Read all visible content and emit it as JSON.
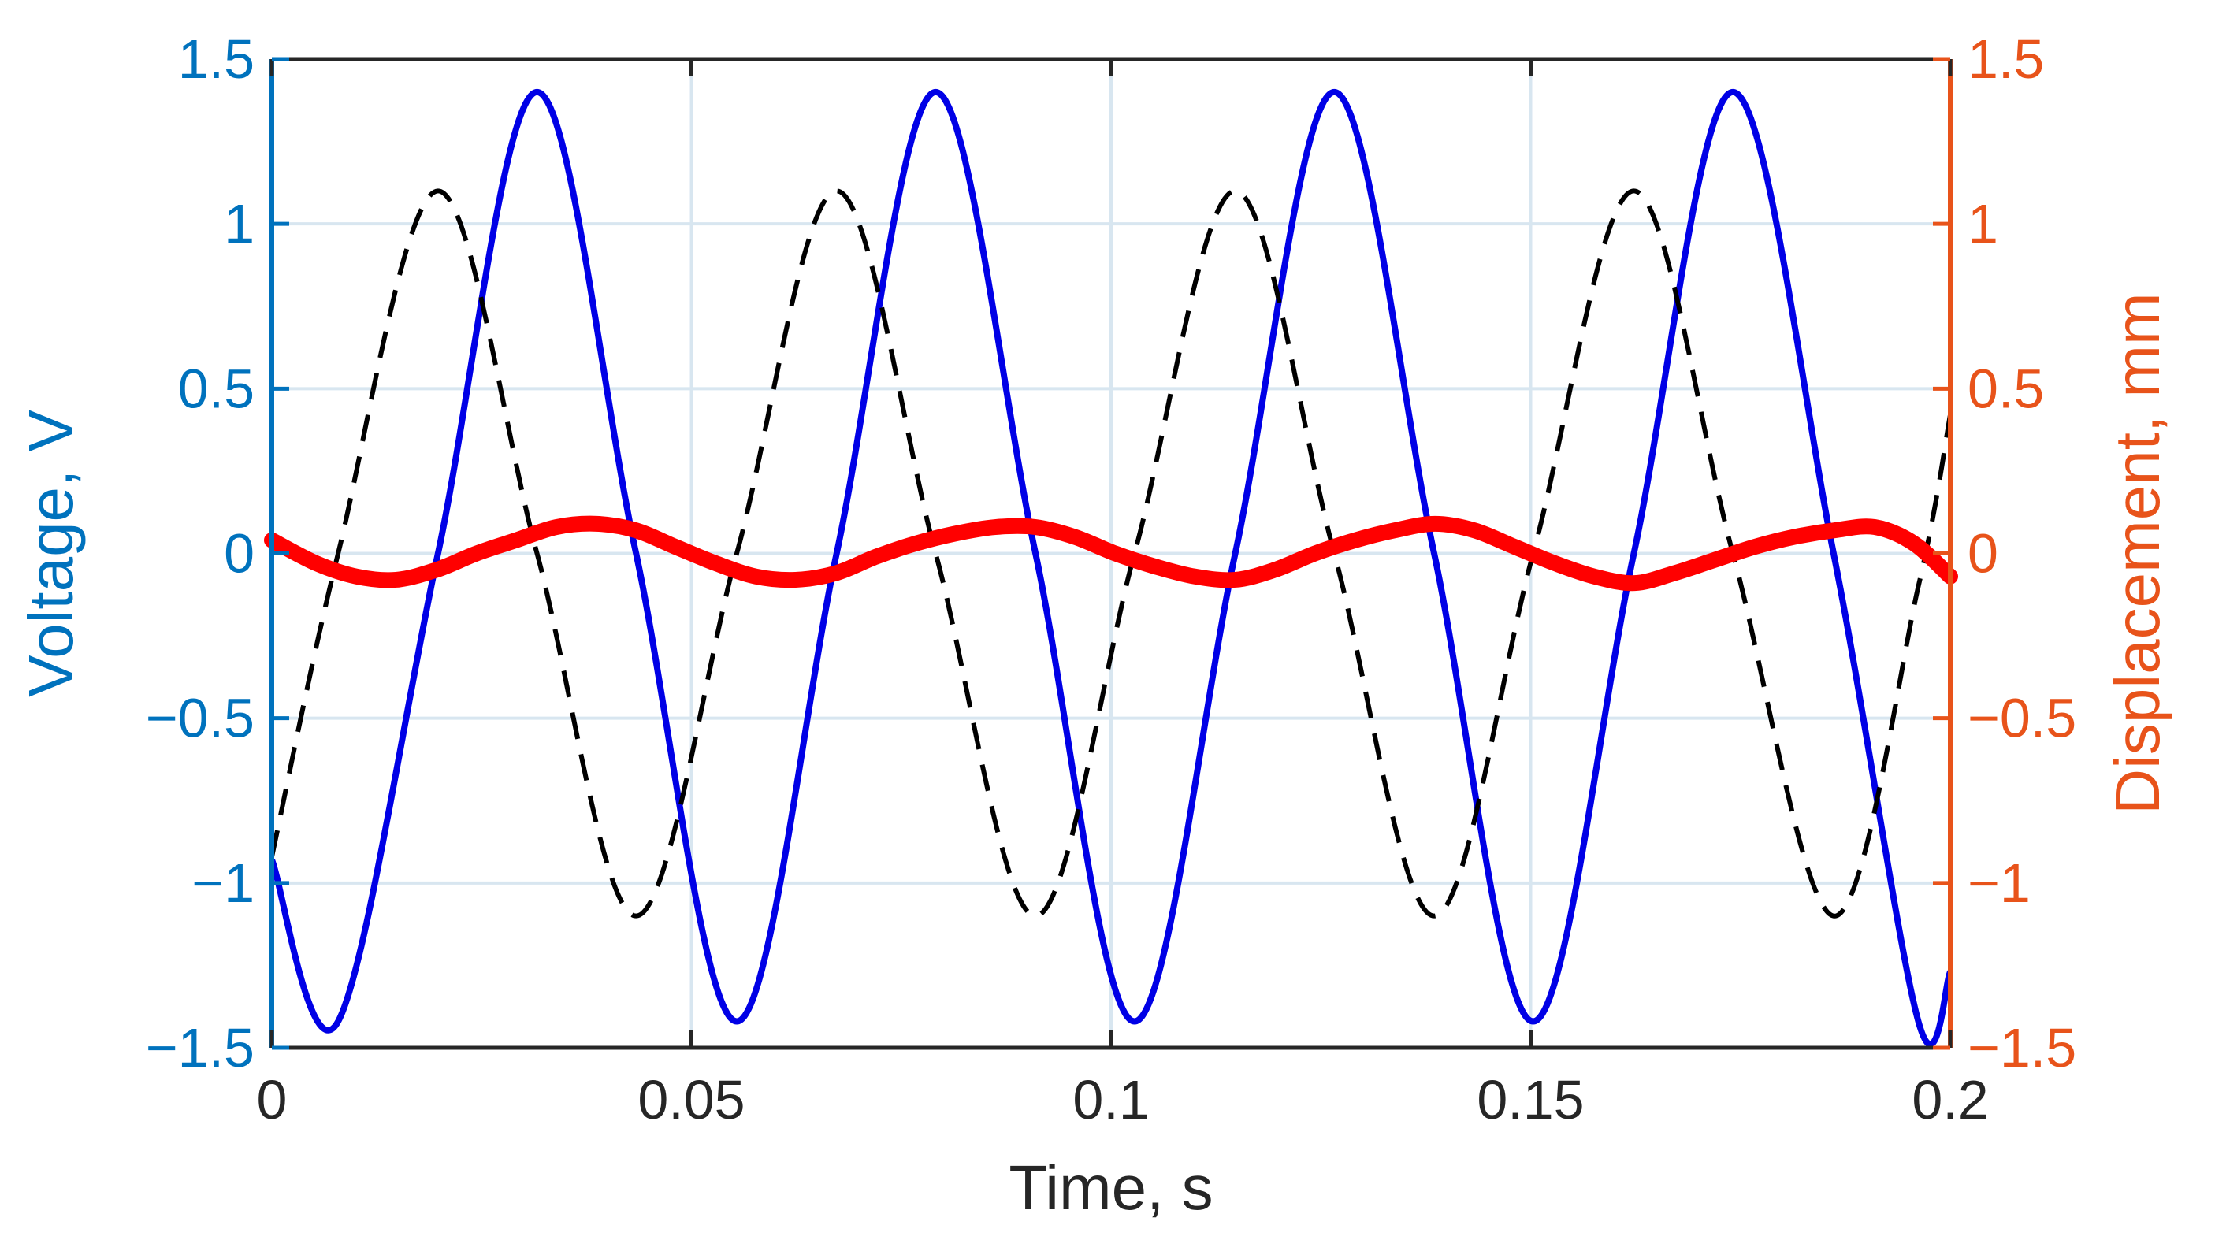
{
  "chart_data": {
    "type": "line",
    "xlabel": "Time,  s",
    "ylabel_left": "Voltage, V",
    "ylabel_right": "Displacement,  mm",
    "xlim": [
      0,
      0.2
    ],
    "ylim_left": [
      -1.5,
      1.5
    ],
    "ylim_right": [
      -1.5,
      1.5
    ],
    "xticks": [
      "0",
      "0.05",
      "0.1",
      "0.15",
      "0.2"
    ],
    "yticks_left": [
      "1.5",
      "1",
      "0.5",
      "0",
      "−0.5",
      "−1",
      "−1.5"
    ],
    "yticks_right": [
      "1.5",
      "1",
      "0.5",
      "0",
      "−0.5",
      "−1",
      "−1.5"
    ],
    "grid": true,
    "series": [
      {
        "axis": "left",
        "style": "solid",
        "color": "#0000e6",
        "x": [
          0,
          0.0079,
          0.0198,
          0.0316,
          0.0434,
          0.0554,
          0.0673,
          0.0791,
          0.091,
          0.1028,
          0.1148,
          0.1266,
          0.1385,
          0.1503,
          0.1623,
          0.1741,
          0.1861,
          0.1962,
          0.2
        ],
        "y": [
          -0.93,
          -1.42,
          0.0,
          1.4,
          0.0,
          -1.42,
          0.0,
          1.4,
          0.0,
          -1.42,
          0.0,
          1.4,
          0.0,
          -1.42,
          0.0,
          1.4,
          0.0,
          -1.42,
          -1.27
        ]
      },
      {
        "axis": "left",
        "style": "dashed",
        "color": "#000000",
        "x": [
          0,
          0.0079,
          0.0198,
          0.0316,
          0.0434,
          0.0554,
          0.0673,
          0.0791,
          0.091,
          0.1028,
          0.1148,
          0.1266,
          0.1385,
          0.1503,
          0.1623,
          0.1741,
          0.1861,
          0.1962,
          0.2
        ],
        "y": [
          -0.92,
          0.0,
          1.1,
          0.0,
          -1.1,
          0.0,
          1.1,
          0.0,
          -1.1,
          0.0,
          1.1,
          0.0,
          -1.1,
          0.0,
          1.1,
          0.0,
          -1.1,
          -0.1,
          0.42
        ]
      },
      {
        "axis": "right",
        "style": "noisy",
        "color": "#ff0000",
        "x": [
          0,
          0.0053,
          0.0101,
          0.0148,
          0.0196,
          0.0244,
          0.0291,
          0.0339,
          0.0387,
          0.0434,
          0.0481,
          0.0529,
          0.0577,
          0.0624,
          0.0672,
          0.072,
          0.0767,
          0.0814,
          0.0862,
          0.091,
          0.0957,
          0.1005,
          0.1053,
          0.11,
          0.1148,
          0.1195,
          0.1243,
          0.1291,
          0.1338,
          0.1386,
          0.1433,
          0.1481,
          0.1529,
          0.1576,
          0.1624,
          0.1671,
          0.1719,
          0.1767,
          0.1814,
          0.1862,
          0.191,
          0.1957,
          0.2
        ],
        "y": [
          0.04,
          -0.03,
          -0.07,
          -0.08,
          -0.05,
          0.0,
          0.04,
          0.08,
          0.09,
          0.07,
          0.02,
          -0.03,
          -0.07,
          -0.08,
          -0.06,
          -0.01,
          0.03,
          0.06,
          0.08,
          0.08,
          0.05,
          0.0,
          -0.04,
          -0.07,
          -0.08,
          -0.05,
          0.0,
          0.04,
          0.07,
          0.09,
          0.07,
          0.02,
          -0.03,
          -0.07,
          -0.09,
          -0.06,
          -0.02,
          0.02,
          0.05,
          0.07,
          0.08,
          0.03,
          -0.07
        ]
      }
    ],
    "colors": {
      "left_axis": "#0072bd",
      "right_axis": "#e8531a",
      "x_axis": "#262626",
      "grid": "#d8e6f0"
    }
  }
}
